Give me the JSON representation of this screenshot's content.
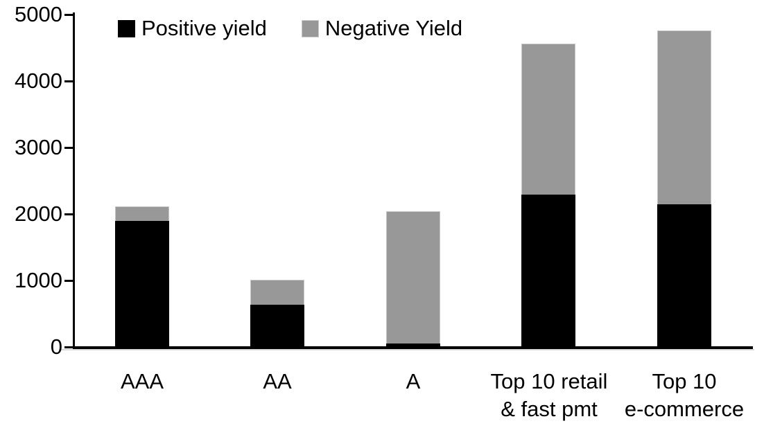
{
  "chart_data": {
    "type": "bar",
    "stacked": true,
    "title": "",
    "xlabel": "",
    "ylabel": "",
    "categories": [
      "AAA",
      "AA",
      "A",
      "Top 10 retail & fast pmt",
      "Top 10 e-commerce"
    ],
    "category_label_lines": [
      [
        "AAA"
      ],
      [
        "AA"
      ],
      [
        "A"
      ],
      [
        "Top 10 retail",
        "& fast pmt"
      ],
      [
        "Top 10",
        "e-commerce"
      ]
    ],
    "series": [
      {
        "name": "Positive yield",
        "color": "#000000",
        "values": [
          1890,
          620,
          40,
          2280,
          2140
        ]
      },
      {
        "name": "Negative Yield",
        "color": "#989898",
        "values": [
          220,
          380,
          1990,
          2270,
          2610
        ]
      }
    ],
    "stack_totals": [
      2110,
      1000,
      2030,
      4550,
      4750
    ],
    "ylim": [
      0,
      5000
    ],
    "ytick_interval": 1000,
    "ytick_labels": [
      "0",
      "1000",
      "2000",
      "3000",
      "4000",
      "5000"
    ],
    "grid": false,
    "legend_position": "top-left"
  },
  "colors": {
    "axis": "#000000",
    "background": "#ffffff",
    "positive_yield": "#000000",
    "negative_yield": "#989898"
  }
}
